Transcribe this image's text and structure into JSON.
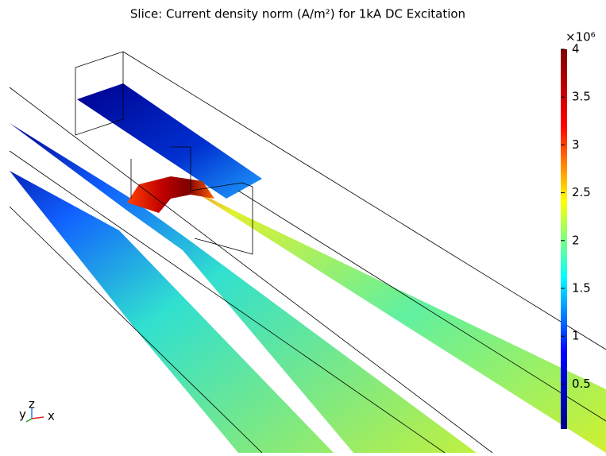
{
  "chart_data": {
    "type": "colormap",
    "title": "Slice: Current density norm (A/m²) for 1kA DC Excitation",
    "multiplier": "×10⁶",
    "clim": [
      0.03,
      4
    ],
    "cticks": [
      0.5,
      1,
      1.5,
      2,
      2.5,
      3,
      3.5,
      4
    ],
    "colormap": [
      "#00008f",
      "#0000ff",
      "#00ffff",
      "#ffff00",
      "#ff0000",
      "#800000"
    ],
    "axes_triad": [
      "y",
      "z",
      "x"
    ]
  }
}
